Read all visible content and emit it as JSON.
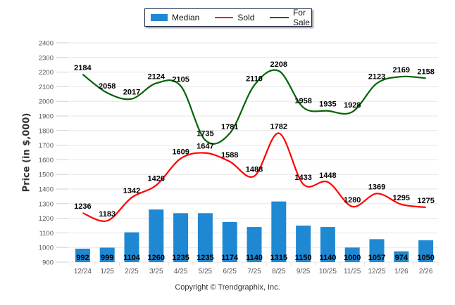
{
  "chart_data": {
    "type": "bar",
    "title": "",
    "xlabel": "",
    "ylabel": "Price (in $,000)",
    "ylim": [
      900,
      2400
    ],
    "yticks": [
      900,
      1000,
      1100,
      1200,
      1300,
      1400,
      1500,
      1600,
      1700,
      1800,
      1900,
      2000,
      2100,
      2200,
      2300,
      2400
    ],
    "grid": true,
    "legend_position": "top-center",
    "categories": [
      "12/24",
      "1/25",
      "2/25",
      "3/25",
      "4/25",
      "5/25",
      "6/25",
      "7/25",
      "8/25",
      "9/25",
      "10/25",
      "11/25",
      "12/25",
      "1/26",
      "2/26"
    ],
    "series": [
      {
        "name": "Median",
        "type": "bar",
        "color": "#1f88d2",
        "values": [
          992,
          999,
          1104,
          1260,
          1235,
          1235,
          1174,
          1140,
          1315,
          1150,
          1140,
          1000,
          1057,
          974,
          1050
        ]
      },
      {
        "name": "Sold",
        "type": "line",
        "color": "#ff0000",
        "values": [
          1236,
          1183,
          1342,
          1426,
          1609,
          1647,
          1588,
          1488,
          1782,
          1433,
          1448,
          1280,
          1369,
          1295,
          1275
        ]
      },
      {
        "name": "For Sale",
        "type": "line",
        "color": "#006400",
        "values": [
          2184,
          2058,
          2017,
          2124,
          2105,
          1735,
          1781,
          2110,
          2208,
          1958,
          1935,
          1928,
          2123,
          2169,
          2158
        ]
      }
    ]
  },
  "legend": {
    "items": [
      {
        "label": "Median",
        "color": "#1f88d2"
      },
      {
        "label": "Sold",
        "color": "#ff0000"
      },
      {
        "label": "For Sale",
        "color": "#006400"
      }
    ]
  },
  "footer": {
    "copyright": "Copyright © Trendgraphix, Inc."
  }
}
